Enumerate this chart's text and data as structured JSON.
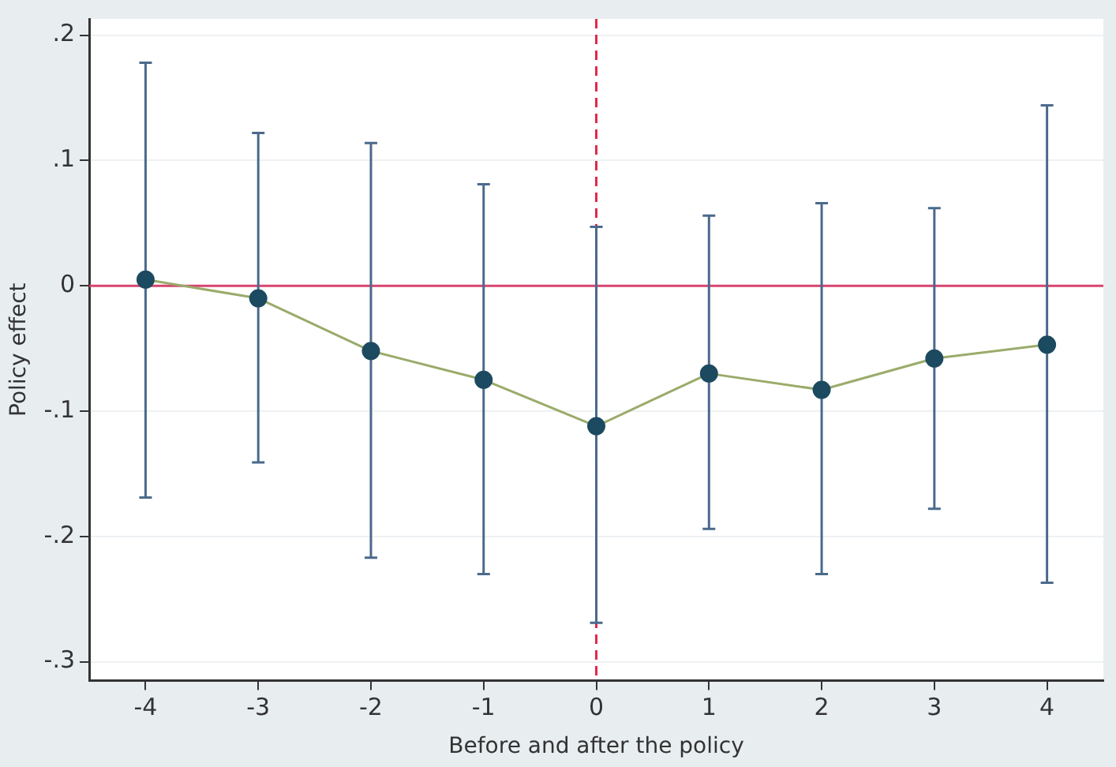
{
  "chart_data": {
    "type": "line",
    "xlabel": "Before and after the policy",
    "ylabel": "Policy effect",
    "x": [
      -4,
      -3,
      -2,
      -1,
      0,
      1,
      2,
      3,
      4
    ],
    "series": [
      {
        "color": "#9aab6a",
        "values": [
          0.005,
          -0.01,
          -0.052,
          -0.075,
          -0.112,
          -0.07,
          -0.083,
          -0.058,
          -0.047
        ],
        "errors": [
          [
            -0.169,
            0.178
          ],
          [
            -0.141,
            0.122
          ],
          [
            -0.217,
            0.114
          ],
          [
            -0.23,
            0.081
          ],
          [
            -0.269,
            0.047
          ],
          [
            -0.194,
            0.056
          ],
          [
            -0.23,
            0.066
          ],
          [
            -0.178,
            0.062
          ],
          [
            -0.237,
            0.144
          ]
        ]
      }
    ],
    "xlim": [
      -4.5,
      4.5
    ],
    "xticks": [
      -4,
      -3,
      -2,
      -1,
      0,
      1,
      2,
      3,
      4
    ],
    "ylim": [
      -0.315,
      0.213
    ],
    "yticks": [
      {
        "value": -0.3,
        "label": "-.3"
      },
      {
        "value": -0.2,
        "label": "-.2"
      },
      {
        "value": -0.1,
        "label": "-.1"
      },
      {
        "value": 0,
        "label": "0"
      },
      {
        "value": 0.1,
        "label": ".1"
      },
      {
        "value": 0.2,
        "label": ".2"
      }
    ],
    "ref_lines": [
      {
        "axis": "y",
        "value": 0,
        "color": "#d6446e",
        "line_style": "solid"
      },
      {
        "axis": "x",
        "value": 0,
        "color": "#e0284a",
        "line_style": "dashed"
      }
    ],
    "grid": "y",
    "legend": false,
    "marker": "circle",
    "line_style": "solid"
  }
}
